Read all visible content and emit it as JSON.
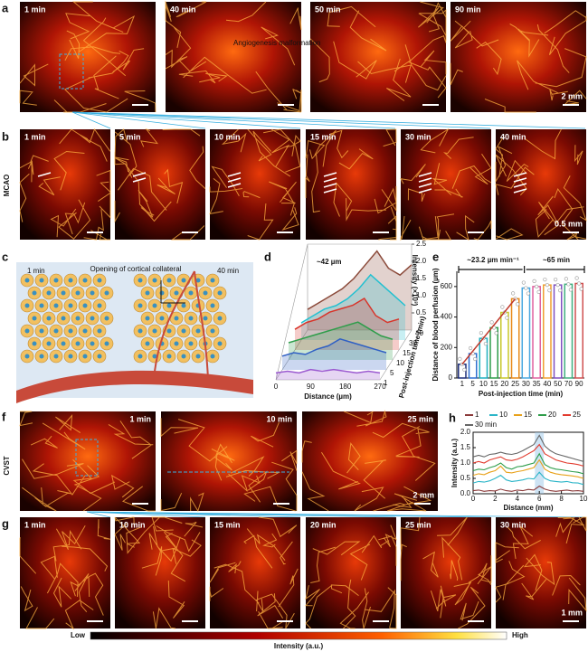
{
  "row_a": {
    "label": "a",
    "times": [
      "1 min",
      "40 min",
      "50 min",
      "90 min"
    ],
    "annotation": "Angiogenesis malformation",
    "scale": "2 mm"
  },
  "row_b": {
    "label": "b",
    "side": "MCAO",
    "times": [
      "1 min",
      "5 min",
      "10 min",
      "15 min",
      "30 min",
      "40 min"
    ],
    "scale": "0.5 mm"
  },
  "panel_c": {
    "label": "c",
    "left": "1 min",
    "right": "40 min",
    "caption": "Opening of cortical collateral"
  },
  "row_f": {
    "label": "f",
    "side": "CVST",
    "times": [
      "1 min",
      "10 min",
      "25 min"
    ],
    "scale": "2 mm"
  },
  "row_g": {
    "label": "g",
    "times": [
      "1 min",
      "10 min",
      "15 min",
      "20 min",
      "25 min",
      "30 min"
    ],
    "scale": "1 mm"
  },
  "colorbar": {
    "low": "Low",
    "high": "High",
    "title": "Intensity (a.u.)"
  },
  "chart_data": [
    {
      "type": "line3d",
      "label": "d",
      "annotation": "~42 µm",
      "x_label": "Distance (µm)",
      "y_label": "Intensity (×10³)",
      "z_label": "Post-injection time (min)",
      "x": [
        0,
        30,
        60,
        90,
        120,
        150,
        180,
        210,
        240,
        270
      ],
      "xlim": [
        0,
        270
      ],
      "xticks": [
        0,
        90,
        180,
        270
      ],
      "ylim": [
        0,
        2.5
      ],
      "yticks": [
        0.5,
        {
          "value": 1,
          "label": "1.0"
        },
        1.5,
        {
          "value": 2,
          "label": "2.0"
        },
        2.5
      ],
      "categories": [
        "1",
        "5",
        "10",
        "15",
        "30",
        "40"
      ],
      "series": [
        {
          "color": "#9b59d0",
          "values": [
            0.2,
            0.25,
            0.2,
            0.3,
            0.25,
            0.3,
            0.25,
            0.2,
            0.25,
            0.2
          ]
        },
        {
          "color": "#2f5fc4",
          "values": [
            0.4,
            0.5,
            0.45,
            0.6,
            0.7,
            0.9,
            0.8,
            0.7,
            0.6,
            0.5
          ]
        },
        {
          "color": "#2e9d4a",
          "values": [
            0.5,
            0.6,
            0.7,
            0.8,
            0.9,
            1.0,
            1.1,
            0.9,
            0.7,
            0.6
          ]
        },
        {
          "color": "#d8342a",
          "values": [
            0.6,
            0.8,
            0.9,
            1.1,
            1.2,
            1.3,
            1.5,
            1.0,
            0.8,
            0.9
          ]
        },
        {
          "color": "#22c0d0",
          "values": [
            0.5,
            0.7,
            0.9,
            1.0,
            1.2,
            1.5,
            1.9,
            1.6,
            1.3,
            1.0
          ]
        },
        {
          "color": "#8b4a3a",
          "values": [
            0.6,
            0.8,
            1.0,
            1.2,
            1.5,
            1.9,
            2.3,
            1.8,
            1.6,
            1.9
          ]
        }
      ]
    },
    {
      "type": "bar",
      "label": "e",
      "annotation_left": "~23.2 µm min⁻¹",
      "annotation_right": "~65 min",
      "x_label": "Post-injection time (min)",
      "y_label": "Distance of blood perfusion (µm)",
      "categories": [
        "1",
        "5",
        "10",
        "15",
        "20",
        "25",
        "30",
        "35",
        "40",
        "50",
        "70",
        "90"
      ],
      "values": [
        90,
        160,
        260,
        330,
        430,
        520,
        590,
        600,
        610,
        610,
        615,
        620
      ],
      "colors": [
        "#1f2f7a",
        "#2f6fd0",
        "#20b0c0",
        "#2e9d4a",
        "#c8c82a",
        "#e88a1a",
        "#4aa8e0",
        "#e060a0",
        "#f0a030",
        "#8050c0",
        "#40b080",
        "#d05050"
      ],
      "ylim": [
        0,
        700
      ],
      "yticks": [
        0,
        200,
        400,
        600
      ]
    },
    {
      "type": "line",
      "label": "h",
      "x_label": "Distance (mm)",
      "y_label": "Intensity (a.u.)",
      "x": [
        0,
        0.5,
        1,
        1.5,
        2,
        2.5,
        3,
        3.5,
        4,
        4.5,
        5,
        5.5,
        6,
        6.5,
        7,
        7.5,
        8,
        8.5,
        9,
        9.5,
        10
      ],
      "xlim": [
        0,
        10
      ],
      "xticks": [
        0,
        2,
        4,
        6,
        8,
        10
      ],
      "ylim": [
        0,
        2
      ],
      "yticks": [
        {
          "value": 0,
          "label": "0.0"
        },
        0.5,
        {
          "value": 1,
          "label": "1.0"
        },
        1.5,
        {
          "value": 2,
          "label": "2.0"
        }
      ],
      "series": [
        {
          "name": "1",
          "color": "#8b3a3a",
          "values": [
            0.1,
            0.12,
            0.08,
            0.1,
            0.09,
            0.15,
            0.1,
            0.08,
            0.12,
            0.1,
            0.14,
            0.12,
            0.25,
            0.15,
            0.1,
            0.08,
            0.1,
            0.12,
            0.09,
            0.1,
            0.08
          ]
        },
        {
          "name": "10",
          "color": "#2bb5c8",
          "values": [
            0.35,
            0.4,
            0.38,
            0.42,
            0.5,
            0.6,
            0.45,
            0.4,
            0.42,
            0.45,
            0.5,
            0.48,
            0.7,
            0.5,
            0.42,
            0.4,
            0.38,
            0.4,
            0.36,
            0.35,
            0.3
          ]
        },
        {
          "name": "15",
          "color": "#e8a21a",
          "values": [
            0.6,
            0.65,
            0.62,
            0.7,
            0.75,
            0.9,
            0.7,
            0.68,
            0.72,
            0.75,
            0.8,
            0.85,
            1.1,
            0.8,
            0.7,
            0.65,
            0.62,
            0.6,
            0.58,
            0.55,
            0.5
          ]
        },
        {
          "name": "20",
          "color": "#2e9d4a",
          "values": [
            0.75,
            0.8,
            0.78,
            0.85,
            0.9,
            1.0,
            0.85,
            0.8,
            0.88,
            0.9,
            0.95,
            1.0,
            1.3,
            0.95,
            0.85,
            0.8,
            0.78,
            0.75,
            0.72,
            0.7,
            0.65
          ]
        },
        {
          "name": "25",
          "color": "#e23b2e",
          "values": [
            1.0,
            1.05,
            1.0,
            1.1,
            1.15,
            1.2,
            1.1,
            1.08,
            1.12,
            1.2,
            1.3,
            1.4,
            1.6,
            1.3,
            1.2,
            1.1,
            1.05,
            1.0,
            0.98,
            0.95,
            0.9
          ]
        },
        {
          "name": "30 min",
          "color": "#666666",
          "values": [
            1.2,
            1.25,
            1.2,
            1.28,
            1.3,
            1.35,
            1.3,
            1.28,
            1.32,
            1.4,
            1.5,
            1.6,
            1.9,
            1.55,
            1.4,
            1.3,
            1.25,
            1.2,
            1.15,
            1.1,
            1.05
          ]
        }
      ]
    }
  ]
}
